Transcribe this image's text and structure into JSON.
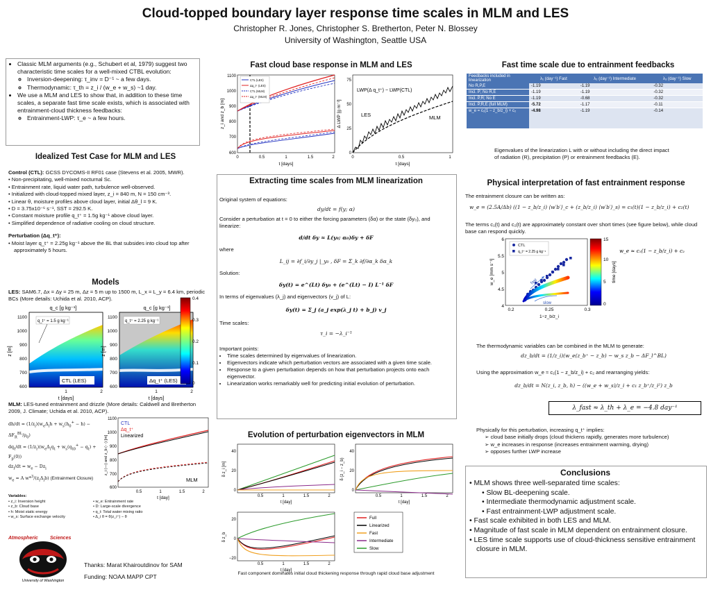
{
  "header": {
    "title": "Cloud-topped boundary layer response time scales in MLM and LES",
    "authors": "Christopher R. Jones, Christopher S. Bretherton, Peter N. Blossey",
    "affiliation": "University of Washington, Seattle USA"
  },
  "intro": {
    "b1": "Classic MLM arguments (e.g., Schubert et al, 1979) suggest two characteristic time scales for a well-mixed CTBL evolution:",
    "b1a": "Inversion-deepening: τ_inv = D⁻¹ ~ a few days.",
    "b1b": "Thermodynamic: τ_th = z_i / (w_e + w_s) ~1 day.",
    "b2": "We use a MLM and LES to show that, in addition to these time scales, a separate fast time scale exists, which is associated with entrainment-cloud thickness feedbacks:",
    "b2a": "Entrainment-LWP: τ_e ~ a few hours."
  },
  "idealized": {
    "heading": "Idealized Test Case for MLM and LES",
    "control_label": "Control (CTL):",
    "control_text": "GCSS DYCOMS-II RF01 case (Stevens et al. 2005, MWR).",
    "bullets": [
      "Non-precipitating, well-mixed nocturnal Sc.",
      "Entrainment rate, liquid water path, turbulence well-observed.",
      "Initialized with cloud-topped mixed layer, z_i = 840 m, N = 150 cm⁻³.",
      "Linear θ, moisture profiles above cloud layer, initial Δθ_l = 9 K.",
      "D = 3.75x10⁻⁶ s⁻¹, SST = 292.5 K.",
      "Constant moisture profile q_t⁺ = 1.5g kg⁻¹ above cloud layer.",
      "Simplified dependence of radiative cooling on cloud structure."
    ],
    "pert_label": "Perturbation (Δq_t⁺):",
    "pert_text": "Moist layer q_t⁺ = 2.25g kg⁻¹ above the BL that subsides into cloud top after approximately 5 hours."
  },
  "models": {
    "heading": "Models",
    "les_label": "LES:",
    "les_text": "SAM6.7, Δx = Δy = 25 m, Δz = 5 m up to 1500 m, L_x = L_y = 6.4 km, periodic BCs (More details: Uchida et al. 2010, ACP).",
    "panel_title": "q_c [g kg⁻¹]",
    "left_annot": "q_t⁺ = 1.5 g kg⁻¹",
    "right_annot": "q_t⁺ = 2.25 g kg⁻¹",
    "left_label": "CTL (LES)",
    "right_label": "Δq_t⁺ (LES)",
    "ylabel": "z [m]",
    "xlabel": "t [days]",
    "yticks": [
      "1100",
      "1000",
      "900",
      "800",
      "700",
      "600"
    ],
    "xticks": [
      "1",
      "2"
    ],
    "cbar_ticks": [
      "0.4",
      "0.3",
      "0.2",
      "0.1",
      "0"
    ],
    "mlm_label": "MLM:",
    "mlm_text": "LES-tuned entrainment and drizzle (More details: Caldwell and Bretherton 2009, J. Climate; Uchida et al. 2010, ACP).",
    "eq_closure": "(Entrainment Closure)",
    "mlm_legend": [
      "CTL",
      "Δq_t⁺",
      "Linearized"
    ],
    "mlm_tag": "MLM",
    "mlm_ylabel": "z_i (—) and z_b (- -) [m]",
    "mlm_xlabel": "t [day]",
    "mlm_yticks": [
      "1100",
      "1000",
      "900",
      "800",
      "700",
      "600"
    ],
    "mlm_xticks": [
      "0.5",
      "1",
      "1.5",
      "2"
    ]
  },
  "variables": {
    "heading": "Variables:",
    "col1": [
      "z_i: Inversion height",
      "z_b: Cloud base",
      "h: Moist static energy",
      "w_s: Surface exchange velocity"
    ],
    "col2": [
      "w_e: Entrainment rate",
      "D: Large-scale divergence",
      "q_t: Total water mixing ratio",
      "Δ_i θ = θ(z_i⁺) − θ"
    ]
  },
  "logo": {
    "top1": "Atmospheric",
    "top2": "Sciences",
    "bottom": "University of Washington"
  },
  "footer": {
    "thanks": "Thanks: Marat Khairoutdinov for SAM",
    "funding": "Funding: NOAA MAPP CPT"
  },
  "fast_base": {
    "heading": "Fast cloud base response in MLM and LES",
    "legend": [
      "CTL (LES)",
      "Δq_t⁺ (LES)",
      "CTL (MLM)",
      "Δq_t⁺ (MLM)"
    ],
    "ylabel1": "z_i and z_b [m]",
    "ylabel2": "Δ LWP [g m⁻²]",
    "xlabel": "t [days]",
    "yticks1": [
      "1100",
      "1000",
      "900",
      "800",
      "700",
      "600"
    ],
    "yticks2": [
      "75",
      "50",
      "25",
      "0"
    ],
    "xticks": [
      "0",
      "0.5",
      "1",
      "1.5",
      "2"
    ],
    "xticks2": [
      "0",
      "0.5",
      "1"
    ],
    "annot": "LWP(Δ q_t⁺) − LWP(CTL)",
    "les": "LES",
    "mlm": "MLM"
  },
  "fast_time": {
    "heading": "Fast time scale due to entrainment feedbacks",
    "columns": [
      "Feedbacks included in linearization",
      "λ₁ (day⁻¹) Fast",
      "λ₂ (day⁻¹) Intermediate",
      "λ₃ (day⁻¹) Slow"
    ],
    "rows": [
      {
        "label": "No R,P,E",
        "v1": "-1.19",
        "v2": "-1.19",
        "v3": "-0.32"
      },
      {
        "label": "Incl. P; No R,E",
        "v1": "-1.19",
        "v2": "-1.19",
        "v3": "-0.32"
      },
      {
        "label": "Incl. P,R; No E",
        "v1": "-1.19",
        "v2": "-0.68",
        "v3": "-0.32"
      },
      {
        "label": "Incl. P,R,E (full MLM)",
        "v1": "-5.72",
        "v2": "-1.17",
        "v3": "-0.11"
      },
      {
        "label": "w_e = c₁(1 − z_b/z_i) + c₂",
        "v1": "-4.98",
        "v2": "-1.19",
        "v3": "-0.14"
      }
    ],
    "caption": "Eigenvalues of the linearization L with or without including the direct impact of radiation (R), precipitation (P) or entrainment feedbacks (E)."
  },
  "extract": {
    "heading": "Extracting time scales from MLM linearization",
    "original": "Original system of equations:",
    "eq1": "dy/dt = f(y; α)",
    "consider": "Consider a perturbation at t = 0 to either the forcing parameters (δα) or the state (δy₀), and linearize:",
    "eq2": "d/dt δy ≈ L(y₀; α₀)δy + δF",
    "where": "where",
    "eq3": "L_ij = ∂f_i/∂y_j |_y₀ ,  δF = Σ_k ∂f/∂α_k δα_k",
    "solution": "Solution:",
    "eq4": "δy(t) = e^(Lt) δy₀ + (e^(Lt) − I) L⁻¹ δF",
    "eigen": "In terms of eigenvalues (λ_j) and eigenvectors (v_j) of L:",
    "eq5": "δy(t) = Σ_j (a_j exp(λ_j t) + b_j) v_j",
    "timescales": "Time scales:",
    "eq6": "τ_i = −λ_i⁻¹",
    "important": "Important points:",
    "points": [
      "Time scales determined by eigenvalues of linearization.",
      "Eigenvectors indicate which perturbation vectors are associated with a given time scale.",
      "Response to a given perturbation depends on how that perturbation projects onto each eigenvector.",
      "Linearization works remarkably well for predicting initial evolution of perturbation."
    ]
  },
  "physical": {
    "heading": "Physical interpretation of fast entrainment response",
    "l1": "The entrainment closure can be written as:",
    "eq1": "w_e = (2.5A/Δb) ((1 − z_b/z_i) ⟨w′b′⟩_c + (z_b/z_i) ⟨w′b′⟩_s) = c₁(t)(1 − z_b/z_i) + c₂(t)",
    "l2": "The terms c₁(t) and c₂(t) are approximately constant over short times (see figure below), while cloud base can respond quickly.",
    "scatter_legend": [
      "CTL",
      "q_t⁺ = 2.25 g kg⁻¹"
    ],
    "scatter_eq": "w_e ≈ c₁(1 − z_b/z_i) + c₂",
    "scatter_ylabel": "w_e [mm s⁻¹]",
    "scatter_xlabel": "1−z_b/z_i",
    "scatter_yticks": [
      "6",
      "5.5",
      "5",
      "4.5",
      "4"
    ],
    "scatter_xticks": [
      "0.2",
      "0.25",
      "0.3"
    ],
    "cbar_label": "time [days]",
    "cbar_ticks": [
      "15",
      "10",
      "5",
      "0"
    ],
    "fast": "fast",
    "slow": "slow",
    "l3": "The thermodynamic variables can be combined in the MLM to generate:",
    "eq2": "dz_b/dt = (1/z_i)(w_e(z_b⁺ − z_b) − w_s z_b − ΔF_l^BL)",
    "l4": "Using the approximation w_e ≈ c₁(1 − z_b/z_i) + c₂ and rearranging yields:",
    "eq3": "dz_b/dt = N(z_i, z_b, h) − ((w_e + w_s)/z_i + c₁ z_b⁺/z_i²) z_b",
    "boxed": "λ_fast ≈ λ_th  +  λ_e = −4.8 day⁻¹",
    "l5": "Physically for this perturbation, increasing q_t⁺ implies:",
    "arrows": [
      "cloud base initially drops (cloud thickens rapidly, generates more turbulence)",
      "w_e increases in response (increases entrainment warming, drying)",
      "opposes further LWP increase"
    ]
  },
  "evolution": {
    "heading": "Evolution of perturbation eigenvectors in MLM",
    "legend": [
      "Full",
      "Linearized",
      "Fast",
      "Intermediate",
      "Slow"
    ],
    "xlabel": "t [day]",
    "ylabel_a": "δ z_i [m]",
    "ylabel_b": "δ (z_i − z_b)",
    "ylabel_c": "δ z_b",
    "yticks_a": [
      "40",
      "20",
      "0"
    ],
    "yticks_b": [
      "40",
      "20",
      "0"
    ],
    "yticks_c": [
      "20",
      "0",
      "−20"
    ],
    "xticks": [
      "0.5",
      "1",
      "1.5",
      "2"
    ],
    "caption": "Fast component dominates initial cloud thickening response through rapid cloud base adjustment"
  },
  "conclusions": {
    "heading": "Conclusions",
    "items": [
      "MLM shows three well-separated time scales:",
      "Slow BL-deepening scale.",
      "Intermediate thermodynamic adjustment scale.",
      "Fast entrainment-LWP adjustment scale.",
      "Fast scale exhibited in both LES and MLM.",
      "Magnitude of fast scale in MLM dependent on entrainment closure.",
      "LES time scale supports use of cloud-thickness sensitive entrainment closure in MLM."
    ]
  },
  "colors": {
    "red": "#e02020",
    "blue": "#2030c0",
    "table_header": "#4a74b4",
    "logo_red": "#c01818"
  }
}
